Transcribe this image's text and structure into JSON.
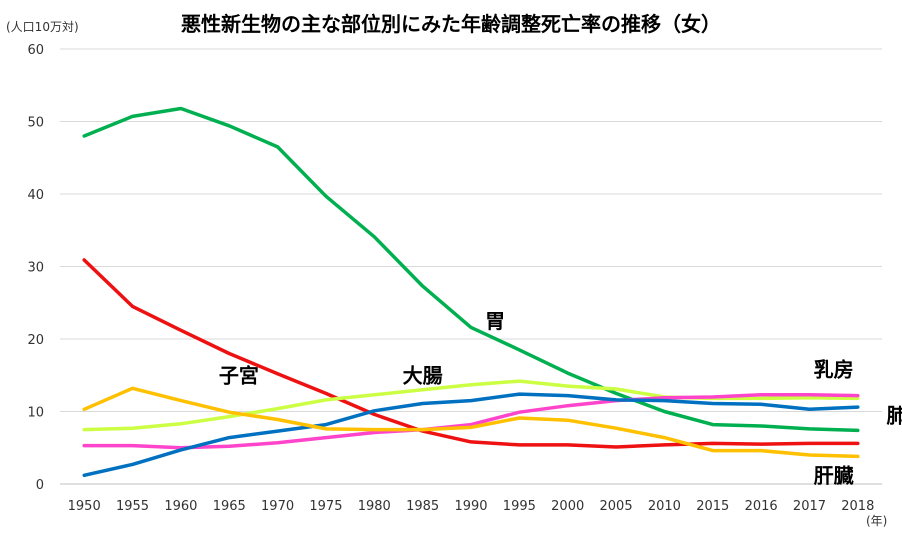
{
  "chart_data": {
    "type": "line",
    "title": "悪性新生物の主な部位別にみた年齢調整死亡率の推移（女）",
    "y_unit_label": "(人口10万対)",
    "x_unit_label": "(年)",
    "ylim": [
      0,
      60
    ],
    "yticks": [
      0,
      10,
      20,
      30,
      40,
      50,
      60
    ],
    "grid": true,
    "legend": "inline labels",
    "x": [
      "1950",
      "1955",
      "1960",
      "1965",
      "1970",
      "1975",
      "1980",
      "1985",
      "1990",
      "1995",
      "2000",
      "2005",
      "2010",
      "2015",
      "2016",
      "2017",
      "2018"
    ],
    "series": [
      {
        "name": "胃",
        "color": "#00b050",
        "values": [
          48.0,
          50.7,
          51.8,
          49.4,
          46.5,
          39.7,
          34.1,
          27.3,
          21.6,
          18.5,
          15.3,
          12.5,
          10.0,
          8.2,
          8.0,
          7.6,
          7.4
        ]
      },
      {
        "name": "子宮",
        "color": "#ee1111",
        "values": [
          30.9,
          24.5,
          21.2,
          18.0,
          15.2,
          12.5,
          9.6,
          7.3,
          5.8,
          5.4,
          5.4,
          5.1,
          5.4,
          5.6,
          5.5,
          5.6,
          5.6
        ]
      },
      {
        "name": "大腸",
        "color": "#ccff44",
        "values": [
          7.5,
          7.7,
          8.3,
          9.3,
          10.4,
          11.6,
          12.3,
          13.0,
          13.7,
          14.2,
          13.5,
          13.1,
          12.0,
          11.8,
          11.8,
          11.9,
          11.8
        ]
      },
      {
        "name": "乳房",
        "color": "#ff44cc",
        "values": [
          5.3,
          5.3,
          5.0,
          5.2,
          5.7,
          6.4,
          7.1,
          7.5,
          8.2,
          9.9,
          10.8,
          11.5,
          11.9,
          12.0,
          12.3,
          12.3,
          12.2
        ]
      },
      {
        "name": "肺",
        "color": "#0070c0",
        "values": [
          1.2,
          2.7,
          4.7,
          6.4,
          7.3,
          8.2,
          10.1,
          11.1,
          11.5,
          12.4,
          12.2,
          11.6,
          11.5,
          11.1,
          11.0,
          10.3,
          10.6
        ]
      },
      {
        "name": "肝臓",
        "color": "#ffc000",
        "values": [
          10.3,
          13.2,
          11.5,
          9.9,
          8.9,
          7.6,
          7.5,
          7.5,
          7.8,
          9.1,
          8.8,
          7.7,
          6.4,
          4.6,
          4.6,
          4.0,
          3.8
        ]
      }
    ],
    "label_positions": {}
  }
}
